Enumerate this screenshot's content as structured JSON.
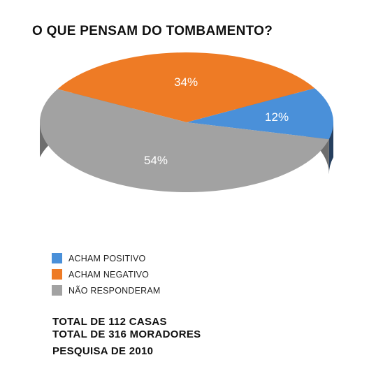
{
  "chart_data": {
    "type": "pie",
    "title": "O QUE PENSAM DO TOMBAMENTO?",
    "slices": [
      {
        "label": "ACHAM POSITIVO",
        "value": 12,
        "value_label": "12%",
        "color": "#4a90d9",
        "side_color": "#263f5e"
      },
      {
        "label": "ACHAM NEGATIVO",
        "value": 34,
        "value_label": "34%",
        "color": "#ee7b25",
        "side_color": "#b85516"
      },
      {
        "label": "NÃO RESPONDERAM",
        "value": 54,
        "value_label": "54%",
        "color": "#a2a2a2",
        "side_color": "#6e6e6e"
      }
    ],
    "style": "3d-tilted",
    "legend_position": "bottom-left"
  },
  "footer": {
    "line1": "TOTAL DE 112 CASAS",
    "line2": "TOTAL DE 316 MORADORES",
    "line3": "PESQUISA DE 2010"
  }
}
